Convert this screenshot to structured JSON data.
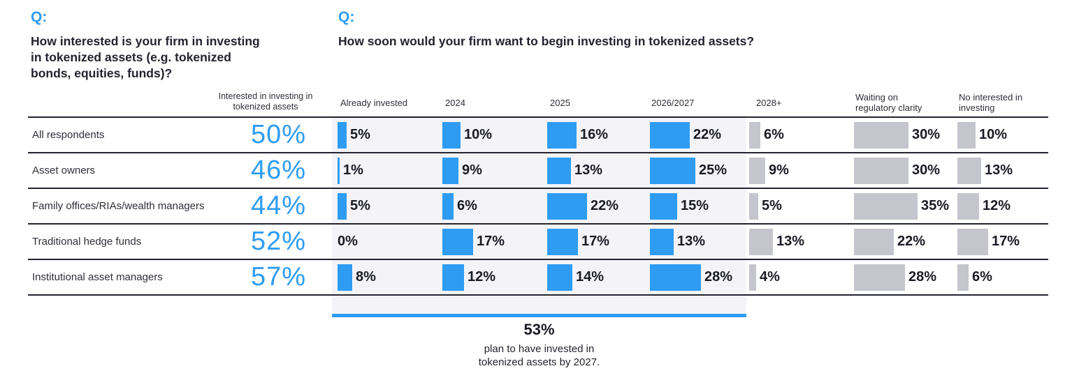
{
  "colors": {
    "accent_blue": "#2e9cf3",
    "bar_gray": "#c5c5cd",
    "highlight_band": "#f4f4f8",
    "ink": "#1a1a24"
  },
  "left_question": {
    "prefix": "Q:",
    "text": "How interested is your firm in investing in tokenized assets (e.g. tokenized bonds, equities, funds)?"
  },
  "right_question": {
    "prefix": "Q:",
    "text": "How soon would your firm want to begin investing in tokenized assets?"
  },
  "chart_data": {
    "type": "bar",
    "title": "How soon would your firm want to begin investing in tokenized assets?",
    "interest_column_header": "Interested in investing in tokenized assets",
    "timing_columns": [
      "Already invested",
      "2024",
      "2025",
      "2026/2027",
      "2028+",
      "Waiting on regulatory clarity",
      "No interested in investing"
    ],
    "near_term_column_count": 4,
    "rows": [
      {
        "label": "All respondents",
        "interested": "50%",
        "values": [
          5,
          10,
          16,
          22,
          6,
          30,
          10
        ]
      },
      {
        "label": "Asset owners",
        "interested": "46%",
        "values": [
          1,
          9,
          13,
          25,
          9,
          30,
          13
        ]
      },
      {
        "label": "Family offices/RIAs/wealth managers",
        "interested": "44%",
        "values": [
          5,
          6,
          22,
          15,
          5,
          35,
          12
        ]
      },
      {
        "label": "Traditional hedge funds",
        "interested": "52%",
        "values": [
          0,
          17,
          17,
          13,
          13,
          22,
          17
        ]
      },
      {
        "label": "Institutional asset managers",
        "interested": "57%",
        "values": [
          8,
          12,
          14,
          28,
          4,
          28,
          6
        ]
      }
    ],
    "callout": {
      "value": "53%",
      "caption": "plan to have invested in tokenized assets by 2027."
    }
  }
}
